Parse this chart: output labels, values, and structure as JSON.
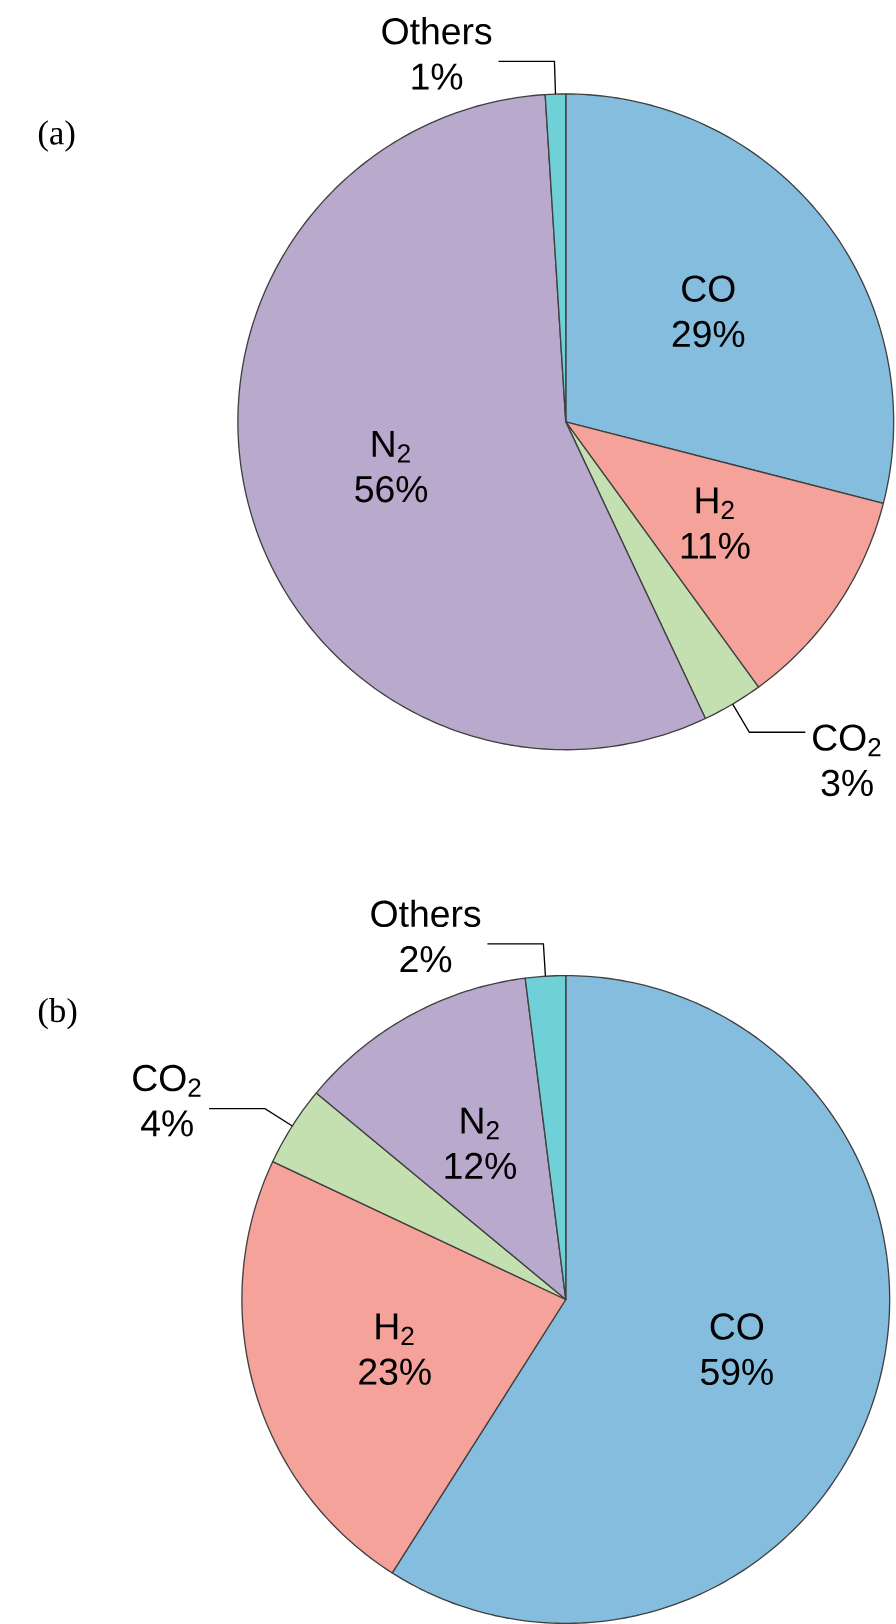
{
  "chart_data": [
    {
      "type": "pie",
      "title": "(a)",
      "categories": [
        "CO",
        "H$_{2}$",
        "CO$_{2}$",
        "N$_{2}$",
        "Others"
      ],
      "values": [
        29,
        11,
        3,
        56,
        1
      ],
      "value_labels": [
        "29%",
        "11%",
        "3%",
        "56%",
        "1%"
      ],
      "colors": [
        "#85bddf",
        "#f4a29a",
        "#c5e0b0",
        "#b9a9cd",
        "#6fd0d8"
      ]
    },
    {
      "type": "pie",
      "title": "(b)",
      "categories": [
        "CO",
        "H$_{2}$",
        "CO$_{2}$",
        "N$_{2}$",
        "Others"
      ],
      "values": [
        59,
        23,
        4,
        12,
        2
      ],
      "value_labels": [
        "59%",
        "23%",
        "4%",
        "12%",
        "2%"
      ],
      "colors": [
        "#85bddf",
        "#f4a29a",
        "#c5e0b0",
        "#b9a9cd",
        "#6fd0d8"
      ]
    }
  ]
}
